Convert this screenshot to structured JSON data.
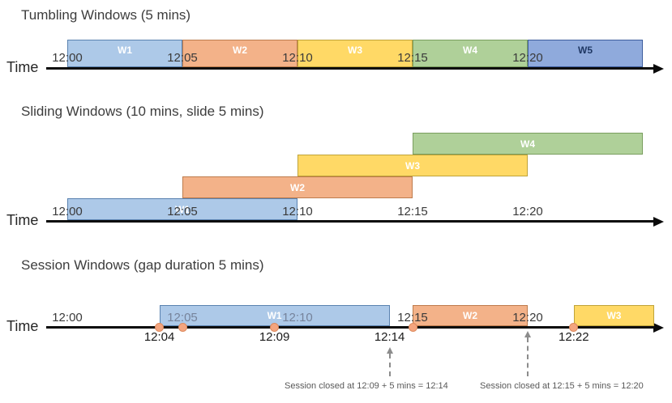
{
  "palette": {
    "blue": "#ADC9E8",
    "blue_dark": "#8FAADC",
    "orange": "#F3B289",
    "yellow": "#FFD966",
    "green": "#AFD099",
    "event_dot": "#F4A57F",
    "annotation_text": "#595959",
    "axis": "#0A0A0A"
  },
  "sections": [
    {
      "title": "Tumbling Windows (5 mins)",
      "time_label": "Time",
      "ticks": [
        {
          "label": "12:00",
          "minute": 0
        },
        {
          "label": "12:05",
          "minute": 5
        },
        {
          "label": "12:10",
          "minute": 10
        },
        {
          "label": "12:15",
          "minute": 15
        },
        {
          "label": "12:20",
          "minute": 20
        }
      ],
      "windows": [
        {
          "label": "W1",
          "start_minute": 0,
          "end_minute": 5,
          "color": "blue"
        },
        {
          "label": "W2",
          "start_minute": 5,
          "end_minute": 10,
          "color": "orange"
        },
        {
          "label": "W3",
          "start_minute": 10,
          "end_minute": 15,
          "color": "yellow"
        },
        {
          "label": "W4",
          "start_minute": 15,
          "end_minute": 20,
          "color": "green"
        },
        {
          "label": "W5",
          "start_minute": 20,
          "end_minute": 25,
          "color": "blue2",
          "label_color": "#1F3864"
        }
      ]
    },
    {
      "title": "Sliding Windows (10 mins, slide 5 mins)",
      "time_label": "Time",
      "ticks": [
        {
          "label": "12:00",
          "minute": 0
        },
        {
          "label": "12:05",
          "minute": 5
        },
        {
          "label": "12:10",
          "minute": 10
        },
        {
          "label": "12:15",
          "minute": 15
        },
        {
          "label": "12:20",
          "minute": 20
        }
      ],
      "windows": [
        {
          "label": "W1",
          "start_minute": 0,
          "end_minute": 10,
          "color": "blue",
          "row": 0
        },
        {
          "label": "W2",
          "start_minute": 5,
          "end_minute": 15,
          "color": "orange",
          "row": 1
        },
        {
          "label": "W3",
          "start_minute": 10,
          "end_minute": 20,
          "color": "yellow",
          "row": 2
        },
        {
          "label": "W4",
          "start_minute": 15,
          "end_minute": 25,
          "color": "green",
          "row": 3
        }
      ]
    },
    {
      "title": "Session Windows (gap duration 5 mins)",
      "time_label": "Time",
      "ticks": [
        {
          "label": "12:00",
          "minute": 0
        },
        {
          "label": "12:05",
          "minute": 5,
          "muted": true
        },
        {
          "label": "12:10",
          "minute": 10,
          "muted": true
        },
        {
          "label": "12:15",
          "minute": 15
        },
        {
          "label": "12:20",
          "minute": 20
        }
      ],
      "windows": [
        {
          "label": "W1",
          "start_minute": 4,
          "end_minute": 14,
          "color": "blue"
        },
        {
          "label": "W2",
          "start_minute": 15,
          "end_minute": 20,
          "color": "orange"
        },
        {
          "label": "W3",
          "start_minute": 22,
          "end_minute": 25.5,
          "color": "yellow"
        }
      ],
      "events": [
        {
          "minute": 4
        },
        {
          "minute": 5
        },
        {
          "minute": 9
        },
        {
          "minute": 15
        },
        {
          "minute": 22
        }
      ],
      "event_labels": [
        {
          "label": "12:04",
          "minute": 4
        },
        {
          "label": "12:09",
          "minute": 9
        },
        {
          "label": "12:14",
          "minute": 14
        },
        {
          "label": "12:22",
          "minute": 22
        }
      ],
      "annotations": [
        {
          "text": "Session closed at 12:09 + 5 mins = 12:14",
          "arrow_minute": 14
        },
        {
          "text": "Session closed at 12:15 + 5 mins = 12:20",
          "arrow_minute": 20
        }
      ]
    }
  ]
}
